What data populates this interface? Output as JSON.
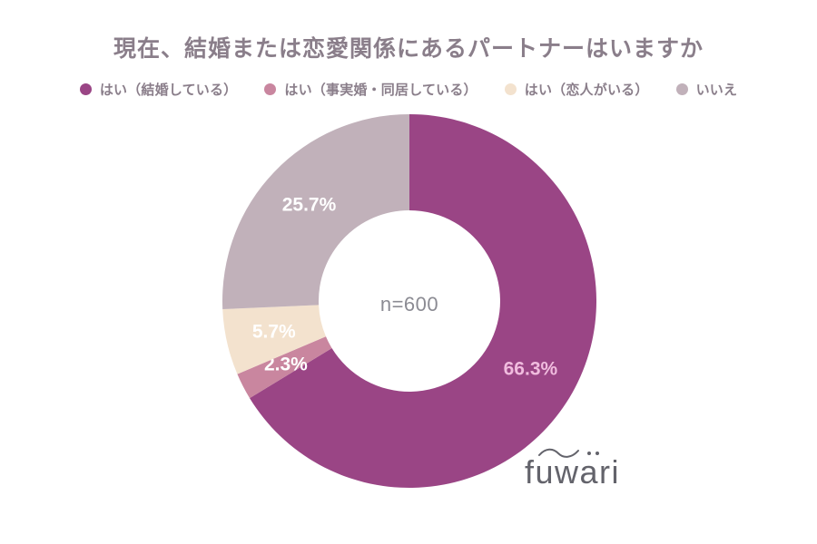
{
  "chart_data": {
    "type": "pie",
    "donut": true,
    "title": "現在、結婚または恋愛関係にあるパートナーはいますか",
    "categories": [
      "はい（結婚している）",
      "はい（事実婚・同居している）",
      "はい（恋人がいる）",
      "いいえ"
    ],
    "values": [
      66.3,
      2.3,
      5.7,
      25.7
    ],
    "slice_labels": [
      "66.3%",
      "2.3%",
      "5.7%",
      "25.7%"
    ],
    "colors": [
      "#9a4585",
      "#c9869f",
      "#f3e2ce",
      "#c1b1ba"
    ],
    "label_colors": [
      "#f0bcde",
      "#ffffff",
      "#ffffff",
      "#ffffff"
    ],
    "center_text": "n=600",
    "start_angle_deg": 0,
    "direction": "clockwise",
    "legend_position": "top",
    "inner_radius_ratio": 0.485
  },
  "watermark": "fuwari",
  "ui_colors": {
    "title_text": "#8a7e8a",
    "legend_text": "#8a7e8a",
    "center_text": "#8b8b93",
    "logo_text": "#63636b",
    "background": "#ffffff"
  }
}
